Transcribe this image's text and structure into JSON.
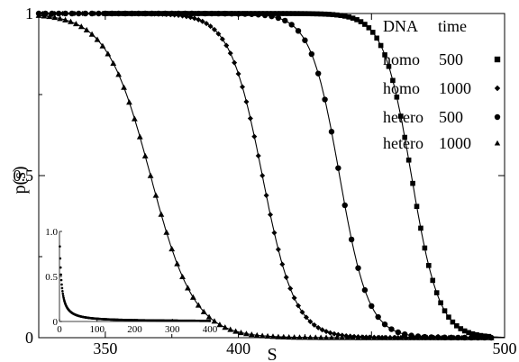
{
  "chart_data": {
    "type": "scatter",
    "xlabel": "S",
    "ylabel": "p(s)",
    "xlim": [
      325,
      500
    ],
    "ylim": [
      0,
      1
    ],
    "x_ticks": [
      350,
      400,
      450,
      500
    ],
    "x_tick_labels": [
      "350",
      "400",
      "",
      "500"
    ],
    "y_ticks": [
      0,
      0.5,
      1
    ],
    "y_tick_labels": [
      "0",
      "0.5",
      "1"
    ],
    "grid": false,
    "legend": {
      "placement": "top-right",
      "header": [
        "DNA",
        "time"
      ],
      "entries": [
        {
          "label": "homo",
          "time": "500",
          "marker": "square"
        },
        {
          "label": "homo",
          "time": "1000",
          "marker": "diamond"
        },
        {
          "label": "hetero",
          "time": "500",
          "marker": "circle"
        },
        {
          "label": "hetero",
          "time": "1000",
          "marker": "triangle"
        }
      ]
    },
    "series": [
      {
        "dna": "homo",
        "time": "500",
        "marker": "square",
        "midpoint": 465,
        "width": 5.2,
        "x_start": 350,
        "x_end": 495,
        "step": 1.5,
        "fit_line": true
      },
      {
        "dna": "homo",
        "time": "1000",
        "marker": "diamond",
        "midpoint": 409,
        "width": 6.1,
        "x_start": 325,
        "x_end": 495,
        "step": 1.5,
        "fit_line": true
      },
      {
        "dna": "hetero",
        "time": "500",
        "marker": "circle",
        "midpoint": 438,
        "width": 5.4,
        "x_start": 325,
        "x_end": 495,
        "step": 2.5,
        "fit_line": true
      },
      {
        "dna": "hetero",
        "time": "1000",
        "marker": "triangle",
        "midpoint": 367,
        "width": 8.2,
        "x_start": 325,
        "x_end": 495,
        "step": 2.0,
        "fit_line": true
      }
    ],
    "inset": {
      "xlim": [
        0,
        400
      ],
      "ylim": [
        0,
        1
      ],
      "x_tick_labels": [
        "0",
        "100",
        "200",
        "300",
        "400"
      ],
      "y_tick_labels": [
        "0",
        "0.5",
        "1.0"
      ],
      "series": {
        "marker": "dot",
        "decay": "power",
        "alpha": 0.2,
        "x_end": 400,
        "step": 1
      }
    }
  },
  "colors": {
    "marker": "#000000",
    "line": "#000000",
    "background": "#ffffff"
  }
}
